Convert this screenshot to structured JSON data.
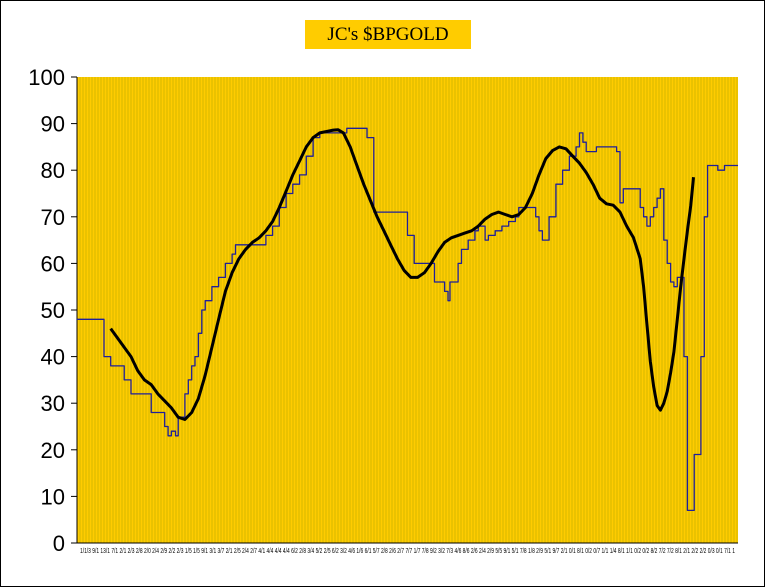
{
  "chart_data": {
    "type": "line",
    "title": "JC's $BPGOLD",
    "ylim": [
      0,
      100
    ],
    "yticks": [
      "0",
      "10",
      "20",
      "30",
      "40",
      "50",
      "60",
      "70",
      "80",
      "90",
      "100"
    ],
    "xlabel": "",
    "ylabel": "",
    "grid": "vertical",
    "legend": "none",
    "x_tick_text": "1/1/3 9/1 13/1 7/1 2/1 2/3 2/8 2/0 2/4 2/9 2/2 2/3 1/5 1/5 9/1 3/1 3/7 2/1 2/5 2/4 2/7 4/1 4/4 4/4 4/4 6/2 2/8 3/4 5/2 2/5 6/2 3/2 4/6 1/6 6/1 5/7 2/8 2/6 2/7 7/7 1/7 7/8 9/2 3/2 7/3 4/6 8/6 2/6 2/4 2/9 5/5 9/1 5/1 7/8 1/8 2/9 5/1 9/7 2/1 0/1 8/1 0/2 0/7 1/1 1/4 8/1 1/1 0/2 0/2 8/2 7/2 7/2 8/1 2/1 2/2 2/2 0/3 0/1 7/1 1",
    "colors": {
      "background": "#FFCC00",
      "gridline": "#D4B800",
      "raw_line": "#1F1F9A",
      "smooth_line": "#000000",
      "title_bg": "#FFCC00"
    },
    "series": [
      {
        "values": [
          [
            0,
            48
          ],
          [
            4,
            48
          ],
          [
            4,
            40
          ],
          [
            5,
            40
          ],
          [
            5,
            38
          ],
          [
            7,
            38
          ],
          [
            7,
            35
          ],
          [
            8,
            35
          ],
          [
            8,
            32
          ],
          [
            11,
            32
          ],
          [
            11,
            28
          ],
          [
            13,
            28
          ],
          [
            13,
            25
          ],
          [
            13.5,
            25
          ],
          [
            13.5,
            23
          ],
          [
            14,
            23
          ],
          [
            14,
            24
          ],
          [
            14.6,
            24
          ],
          [
            14.6,
            23
          ],
          [
            15,
            23
          ],
          [
            15,
            27
          ],
          [
            16,
            27
          ],
          [
            16,
            32
          ],
          [
            16.5,
            32
          ],
          [
            16.5,
            35
          ],
          [
            17,
            35
          ],
          [
            17,
            38
          ],
          [
            17.5,
            38
          ],
          [
            17.5,
            40
          ],
          [
            18,
            40
          ],
          [
            18,
            45
          ],
          [
            18.5,
            45
          ],
          [
            18.5,
            50
          ],
          [
            19,
            50
          ],
          [
            19,
            52
          ],
          [
            20,
            52
          ],
          [
            20,
            55
          ],
          [
            21,
            55
          ],
          [
            21,
            57
          ],
          [
            22,
            57
          ],
          [
            22,
            60
          ],
          [
            23,
            60
          ],
          [
            23,
            62
          ],
          [
            23.5,
            62
          ],
          [
            23.5,
            64
          ],
          [
            28,
            64
          ],
          [
            28,
            66
          ],
          [
            29,
            66
          ],
          [
            29,
            68
          ],
          [
            30,
            68
          ],
          [
            30,
            72
          ],
          [
            31,
            72
          ],
          [
            31,
            75
          ],
          [
            32,
            75
          ],
          [
            32,
            77
          ],
          [
            33,
            77
          ],
          [
            33,
            79
          ],
          [
            34,
            79
          ],
          [
            34,
            83
          ],
          [
            35,
            83
          ],
          [
            35,
            87
          ],
          [
            36,
            87
          ],
          [
            36,
            88
          ],
          [
            40,
            88
          ],
          [
            40,
            89
          ],
          [
            43,
            89
          ],
          [
            43,
            87
          ],
          [
            44,
            87
          ],
          [
            44,
            71
          ],
          [
            49,
            71
          ],
          [
            49,
            66
          ],
          [
            50,
            66
          ],
          [
            50,
            60
          ],
          [
            53,
            60
          ],
          [
            53,
            56
          ],
          [
            54.5,
            56
          ],
          [
            54.5,
            54
          ],
          [
            55,
            54
          ],
          [
            55,
            52
          ],
          [
            55.3,
            52
          ],
          [
            55.3,
            56
          ],
          [
            56.5,
            56
          ],
          [
            56.5,
            60
          ],
          [
            57,
            60
          ],
          [
            57,
            63
          ],
          [
            58,
            63
          ],
          [
            58,
            65
          ],
          [
            59,
            65
          ],
          [
            59,
            67
          ],
          [
            59.5,
            67
          ],
          [
            59.5,
            68
          ],
          [
            60.5,
            68
          ],
          [
            60.5,
            65
          ],
          [
            61,
            65
          ],
          [
            61,
            66
          ],
          [
            62,
            66
          ],
          [
            62,
            67
          ],
          [
            63,
            67
          ],
          [
            63,
            68
          ],
          [
            64,
            68
          ],
          [
            64,
            69
          ],
          [
            65,
            69
          ],
          [
            65,
            70
          ],
          [
            65.5,
            70
          ],
          [
            65.5,
            72
          ],
          [
            68,
            72
          ],
          [
            68,
            70
          ],
          [
            68.5,
            70
          ],
          [
            68.5,
            67
          ],
          [
            69,
            67
          ],
          [
            69,
            65
          ],
          [
            70,
            65
          ],
          [
            70,
            70
          ],
          [
            71,
            70
          ],
          [
            71,
            77
          ],
          [
            72,
            77
          ],
          [
            72,
            80
          ],
          [
            73,
            80
          ],
          [
            73,
            83
          ],
          [
            74,
            83
          ],
          [
            74,
            85
          ],
          [
            74.5,
            85
          ],
          [
            74.5,
            88
          ],
          [
            75,
            88
          ],
          [
            75,
            86
          ],
          [
            75.5,
            86
          ],
          [
            75.5,
            84
          ],
          [
            77,
            84
          ],
          [
            77,
            85
          ],
          [
            80,
            85
          ],
          [
            80,
            84
          ],
          [
            80.5,
            84
          ],
          [
            80.5,
            73
          ],
          [
            81,
            73
          ],
          [
            81,
            76
          ],
          [
            83.5,
            76
          ],
          [
            83.5,
            72
          ],
          [
            84,
            72
          ],
          [
            84,
            70
          ],
          [
            84.5,
            70
          ],
          [
            84.5,
            68
          ],
          [
            85,
            68
          ],
          [
            85,
            70
          ],
          [
            85.5,
            70
          ],
          [
            85.5,
            72
          ],
          [
            86,
            72
          ],
          [
            86,
            74
          ],
          [
            86.5,
            74
          ],
          [
            86.5,
            76
          ],
          [
            87,
            76
          ],
          [
            87,
            65
          ],
          [
            87.5,
            65
          ],
          [
            87.5,
            60
          ],
          [
            88,
            60
          ],
          [
            88,
            56
          ],
          [
            88.5,
            56
          ],
          [
            88.5,
            55
          ],
          [
            89,
            55
          ],
          [
            89,
            57
          ],
          [
            90,
            57
          ],
          [
            90,
            40
          ],
          [
            90.5,
            40
          ],
          [
            90.5,
            7
          ],
          [
            91.5,
            7
          ],
          [
            91.5,
            19
          ],
          [
            92.5,
            19
          ],
          [
            92.5,
            40
          ],
          [
            93,
            40
          ],
          [
            93,
            70
          ],
          [
            93.5,
            70
          ],
          [
            93.5,
            81
          ],
          [
            95,
            81
          ],
          [
            95,
            80
          ],
          [
            96,
            80
          ],
          [
            96,
            81
          ],
          [
            98,
            81
          ]
        ]
      },
      {
        "values": [
          [
            5,
            46
          ],
          [
            6,
            44
          ],
          [
            7,
            42
          ],
          [
            8,
            40
          ],
          [
            9,
            37
          ],
          [
            10,
            35
          ],
          [
            11,
            34
          ],
          [
            12,
            32
          ],
          [
            13,
            30.5
          ],
          [
            14,
            29
          ],
          [
            15,
            27
          ],
          [
            16,
            26.5
          ],
          [
            17,
            28
          ],
          [
            18,
            31
          ],
          [
            19,
            36
          ],
          [
            20,
            42
          ],
          [
            21,
            48
          ],
          [
            22,
            54
          ],
          [
            23,
            58
          ],
          [
            24,
            61
          ],
          [
            25,
            63
          ],
          [
            26,
            64.5
          ],
          [
            27,
            65.5
          ],
          [
            28,
            67
          ],
          [
            29,
            69
          ],
          [
            30,
            72
          ],
          [
            31,
            75.5
          ],
          [
            32,
            79
          ],
          [
            33,
            82
          ],
          [
            34,
            85
          ],
          [
            35,
            87
          ],
          [
            36,
            88
          ],
          [
            37,
            88.3
          ],
          [
            38,
            88.6
          ],
          [
            38.7,
            88.7
          ],
          [
            39.5,
            88
          ],
          [
            40.5,
            85
          ],
          [
            41.5,
            81
          ],
          [
            42.5,
            77
          ],
          [
            43.5,
            73.5
          ],
          [
            44.5,
            70
          ],
          [
            45.5,
            67
          ],
          [
            46.5,
            64
          ],
          [
            47.5,
            61
          ],
          [
            48.5,
            58.5
          ],
          [
            49.5,
            57
          ],
          [
            50.5,
            57
          ],
          [
            51.5,
            58
          ],
          [
            52.5,
            60
          ],
          [
            53.5,
            62.5
          ],
          [
            54.5,
            64.5
          ],
          [
            55.5,
            65.5
          ],
          [
            56.5,
            66
          ],
          [
            57.5,
            66.5
          ],
          [
            58.5,
            67
          ],
          [
            59.5,
            68
          ],
          [
            60.5,
            69.5
          ],
          [
            61.5,
            70.5
          ],
          [
            62.5,
            71
          ],
          [
            63.5,
            70.5
          ],
          [
            64.5,
            70
          ],
          [
            65.5,
            70.5
          ],
          [
            66.5,
            72
          ],
          [
            67.5,
            75
          ],
          [
            68.5,
            79
          ],
          [
            69.5,
            82.5
          ],
          [
            70.5,
            84.2
          ],
          [
            71.5,
            85
          ],
          [
            72.5,
            84.6
          ],
          [
            73.5,
            83
          ],
          [
            74.5,
            81.5
          ],
          [
            75.5,
            79.5
          ],
          [
            76.5,
            77
          ],
          [
            77.5,
            74
          ],
          [
            78.5,
            72.8
          ],
          [
            79.5,
            72.5
          ],
          [
            80.5,
            71
          ],
          [
            81.5,
            68
          ],
          [
            82.5,
            65.5
          ],
          [
            83.5,
            61
          ],
          [
            84,
            55
          ],
          [
            84.5,
            47
          ],
          [
            85,
            39
          ],
          [
            85.5,
            33.5
          ],
          [
            86,
            29.5
          ],
          [
            86.5,
            28.5
          ],
          [
            87,
            30
          ],
          [
            87.5,
            32.5
          ],
          [
            88,
            36.5
          ],
          [
            88.5,
            41
          ],
          [
            89,
            48
          ],
          [
            89.5,
            55
          ],
          [
            90,
            61
          ],
          [
            90.5,
            67
          ],
          [
            91,
            72.5
          ],
          [
            91.4,
            78.5
          ]
        ]
      }
    ]
  }
}
